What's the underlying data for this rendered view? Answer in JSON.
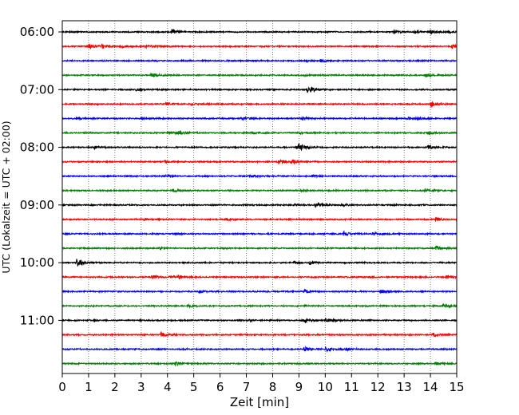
{
  "chart_data": {
    "type": "line",
    "title": "",
    "xlabel": "Zeit  [min]",
    "ylabel": "UTC (Lokalzeit = UTC + 02:00)",
    "xlim": [
      0,
      15
    ],
    "x_ticks": [
      0,
      1,
      2,
      3,
      4,
      5,
      6,
      7,
      8,
      9,
      10,
      11,
      12,
      13,
      14,
      15
    ],
    "y_ticks": [
      "06:00",
      "07:00",
      "08:00",
      "09:00",
      "10:00",
      "11:00"
    ],
    "grid": "vertical dotted",
    "colors": [
      "#000000",
      "#ff0000",
      "#0000ff",
      "#008000"
    ],
    "traces": [
      {
        "start": "06:00",
        "color": "#000000",
        "events": [
          [
            4.15,
            1.0
          ],
          [
            12.6,
            0.6
          ],
          [
            13.4,
            0.5
          ],
          [
            14.0,
            0.6
          ],
          [
            14.6,
            0.5
          ]
        ]
      },
      {
        "start": "06:15",
        "color": "#ff0000",
        "events": [
          [
            1.0,
            0.9
          ],
          [
            1.5,
            0.8
          ],
          [
            2.2,
            0.6
          ],
          [
            3.2,
            0.7
          ],
          [
            14.8,
            0.9
          ]
        ]
      },
      {
        "start": "06:30",
        "color": "#0000ff",
        "events": [
          [
            9.3,
            0.4
          ],
          [
            9.8,
            0.5
          ]
        ]
      },
      {
        "start": "06:45",
        "color": "#008000",
        "events": [
          [
            3.35,
            0.9
          ],
          [
            9.1,
            0.3
          ],
          [
            13.8,
            0.6
          ]
        ]
      },
      {
        "start": "07:00",
        "color": "#000000",
        "events": [
          [
            2.8,
            0.4
          ],
          [
            9.3,
            0.9
          ],
          [
            9.45,
            0.7
          ]
        ]
      },
      {
        "start": "07:15",
        "color": "#ff0000",
        "events": [
          [
            3.9,
            0.6
          ],
          [
            4.9,
            0.5
          ],
          [
            14.0,
            0.9
          ]
        ]
      },
      {
        "start": "07:30",
        "color": "#0000ff",
        "events": [
          [
            0.5,
            0.5
          ],
          [
            3.0,
            0.5
          ],
          [
            6.8,
            0.5
          ],
          [
            9.1,
            0.6
          ],
          [
            13.1,
            0.5
          ],
          [
            13.5,
            0.6
          ]
        ]
      },
      {
        "start": "07:45",
        "color": "#008000",
        "events": [
          [
            4.0,
            0.5
          ],
          [
            4.4,
            0.8
          ],
          [
            7.2,
            0.4
          ],
          [
            9.0,
            0.3
          ],
          [
            13.9,
            0.7
          ]
        ]
      },
      {
        "start": "08:00",
        "color": "#000000",
        "events": [
          [
            1.2,
            0.5
          ],
          [
            8.9,
            1.0
          ],
          [
            9.0,
            0.9
          ],
          [
            13.9,
            0.8
          ]
        ]
      },
      {
        "start": "08:15",
        "color": "#ff0000",
        "events": [
          [
            8.2,
            0.9
          ],
          [
            8.7,
            0.8
          ],
          [
            3.9,
            0.5
          ]
        ]
      },
      {
        "start": "08:30",
        "color": "#0000ff",
        "events": [
          [
            3.9,
            0.5
          ],
          [
            7.1,
            0.6
          ],
          [
            9.5,
            0.5
          ]
        ]
      },
      {
        "start": "08:45",
        "color": "#008000",
        "events": [
          [
            4.2,
            0.6
          ],
          [
            9.1,
            0.3
          ],
          [
            13.8,
            0.5
          ]
        ]
      },
      {
        "start": "09:00",
        "color": "#000000",
        "events": [
          [
            8.8,
            0.5
          ],
          [
            9.6,
            1.0
          ],
          [
            10.6,
            0.5
          ]
        ]
      },
      {
        "start": "09:15",
        "color": "#ff0000",
        "events": [
          [
            3.1,
            0.4
          ],
          [
            6.2,
            0.3
          ],
          [
            14.2,
            0.8
          ]
        ]
      },
      {
        "start": "09:30",
        "color": "#0000ff",
        "events": [
          [
            4.3,
            0.3
          ],
          [
            10.7,
            0.8
          ],
          [
            11.8,
            0.7
          ]
        ]
      },
      {
        "start": "09:45",
        "color": "#008000",
        "events": [
          [
            3.7,
            0.3
          ],
          [
            14.2,
            0.8
          ]
        ]
      },
      {
        "start": "10:00",
        "color": "#000000",
        "events": [
          [
            0.55,
            1.6
          ],
          [
            8.8,
            0.4
          ],
          [
            9.4,
            0.6
          ]
        ]
      },
      {
        "start": "10:15",
        "color": "#ff0000",
        "events": [
          [
            3.4,
            0.7
          ],
          [
            4.1,
            0.6
          ],
          [
            4.4,
            0.5
          ],
          [
            14.6,
            0.7
          ]
        ]
      },
      {
        "start": "10:30",
        "color": "#0000ff",
        "events": [
          [
            5.2,
            0.4
          ],
          [
            9.2,
            0.7
          ],
          [
            12.1,
            0.8
          ]
        ]
      },
      {
        "start": "10:45",
        "color": "#008000",
        "events": [
          [
            4.8,
            0.6
          ],
          [
            14.5,
            0.9
          ]
        ]
      },
      {
        "start": "11:00",
        "color": "#000000",
        "events": [
          [
            7.0,
            0.3
          ],
          [
            9.2,
            0.8
          ],
          [
            10.0,
            0.7
          ],
          [
            10.3,
            0.4
          ]
        ]
      },
      {
        "start": "11:15",
        "color": "#ff0000",
        "events": [
          [
            3.75,
            0.9
          ],
          [
            14.1,
            0.7
          ]
        ]
      },
      {
        "start": "11:30",
        "color": "#0000ff",
        "events": [
          [
            9.2,
            0.8
          ],
          [
            10.0,
            0.9
          ],
          [
            10.8,
            0.5
          ]
        ]
      },
      {
        "start": "11:45",
        "color": "#008000",
        "events": [
          [
            4.3,
            0.8
          ],
          [
            14.2,
            0.8
          ]
        ]
      }
    ]
  }
}
